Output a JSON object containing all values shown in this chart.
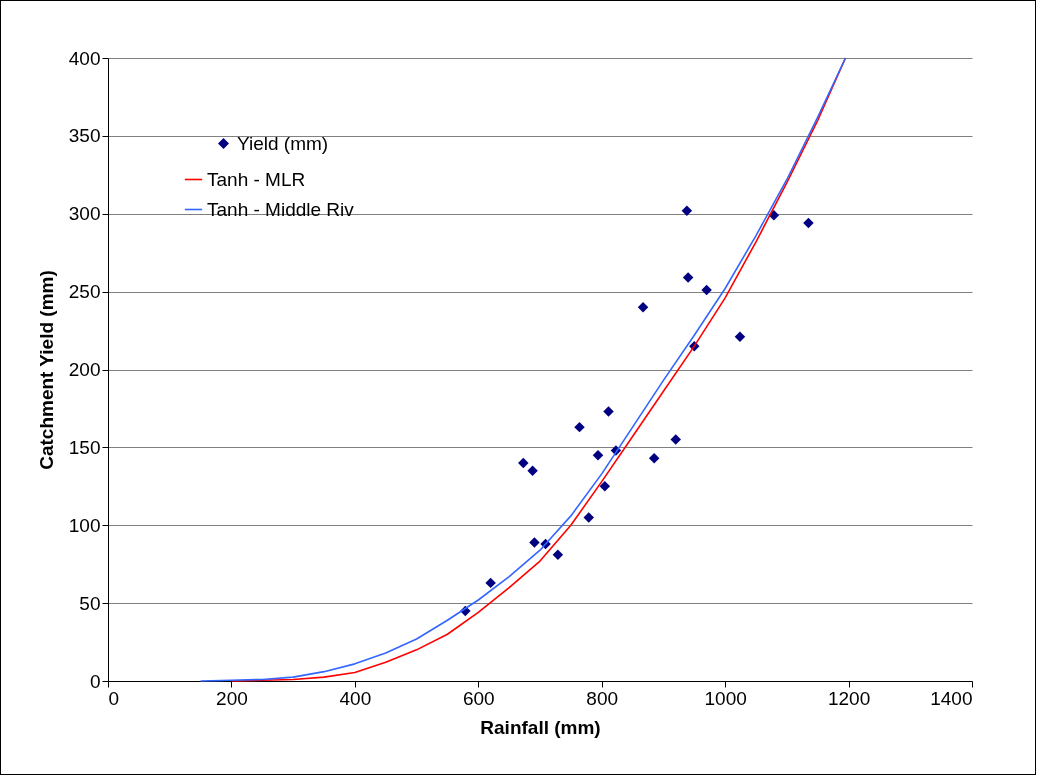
{
  "chart_data": {
    "type": "scatter",
    "xlabel": "Rainfall (mm)",
    "ylabel": "Catchment Yield (mm)",
    "xlim": [
      0,
      1400
    ],
    "xticks": [
      0,
      200,
      400,
      600,
      800,
      1000,
      1200,
      1400
    ],
    "ylim": [
      0,
      400
    ],
    "yticks": [
      0,
      50,
      100,
      150,
      200,
      250,
      300,
      350,
      400
    ],
    "grid": "y",
    "legend": "top left",
    "series": [
      {
        "name": "Yield (mm)",
        "marker": "diamond",
        "color": "#000080",
        "x": [
          579,
          620,
          673,
          688,
          691,
          709,
          729,
          764,
          779,
          794,
          805,
          811,
          823,
          867,
          885,
          920,
          938,
          940,
          950,
          970,
          1024,
          1079,
          1135
        ],
        "values": [
          45,
          63,
          140,
          135,
          89,
          88,
          81,
          163,
          105,
          145,
          125,
          173,
          148,
          240,
          143,
          155,
          302,
          259,
          215,
          251,
          221,
          299,
          294
        ]
      },
      {
        "name": "Tanh - MLR",
        "type": "line",
        "color": "#ff0000",
        "x": [
          200,
          250,
          300,
          350,
          400,
          450,
          500,
          550,
          600,
          650,
          700,
          750,
          800,
          850,
          900,
          950,
          1000,
          1050,
          1100,
          1150,
          1195
        ],
        "values": [
          0,
          0.5,
          1,
          2.5,
          5.5,
          12,
          20,
          30,
          44,
          60,
          77,
          100,
          128,
          157,
          186,
          215,
          246,
          282,
          320,
          360,
          400
        ]
      },
      {
        "name": "Tanh - Middle Riv",
        "type": "line",
        "color": "#3366ff",
        "x": [
          150,
          200,
          250,
          300,
          350,
          400,
          450,
          500,
          550,
          600,
          650,
          700,
          750,
          800,
          850,
          900,
          950,
          1000,
          1050,
          1100,
          1150,
          1195
        ],
        "values": [
          0,
          0.5,
          1,
          2.5,
          6,
          11,
          18,
          27,
          39,
          52,
          67,
          84,
          106,
          133,
          163,
          193,
          222,
          252,
          286,
          322,
          362,
          400
        ]
      }
    ]
  }
}
